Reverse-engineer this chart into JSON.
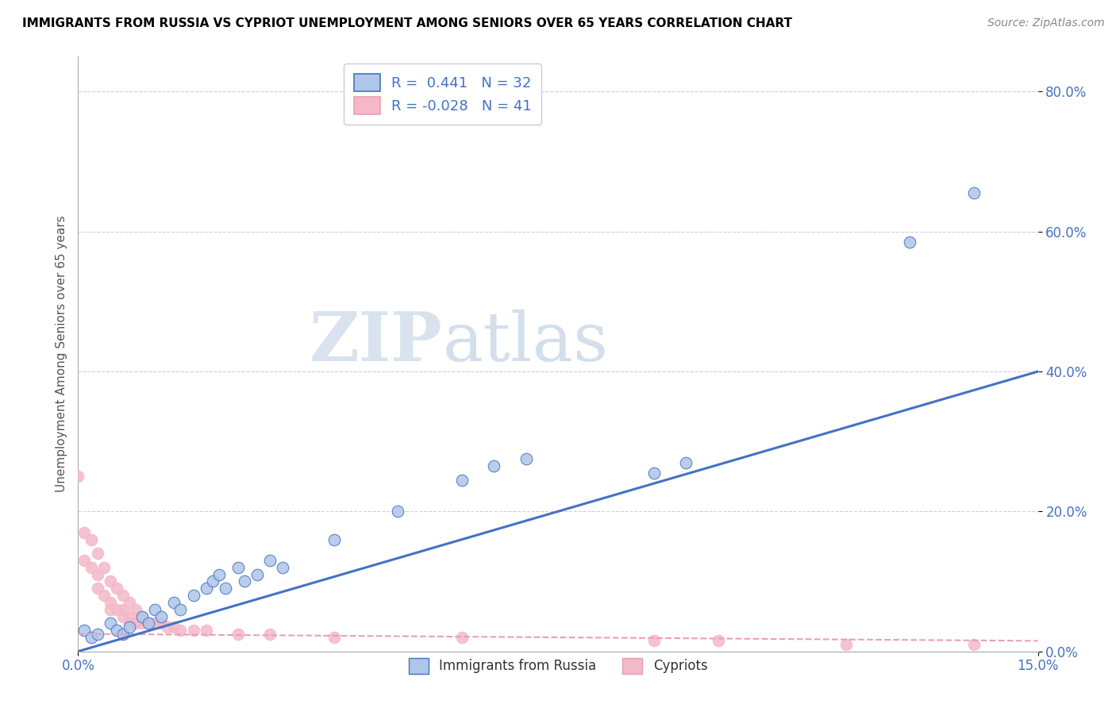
{
  "title": "IMMIGRANTS FROM RUSSIA VS CYPRIOT UNEMPLOYMENT AMONG SENIORS OVER 65 YEARS CORRELATION CHART",
  "source": "Source: ZipAtlas.com",
  "ylabel_label": "Unemployment Among Seniors over 65 years",
  "legend_label1": "Immigrants from Russia",
  "legend_label2": "Cypriots",
  "R1": 0.441,
  "N1": 32,
  "R2": -0.028,
  "N2": 41,
  "color_blue": "#aec6e8",
  "color_pink": "#f4b8c8",
  "line_blue": "#4472c4",
  "line_pink_dashed": "#f4b8c8",
  "watermark_zip": "ZIP",
  "watermark_atlas": "atlas",
  "blue_scatter_x": [
    0.001,
    0.002,
    0.003,
    0.005,
    0.006,
    0.007,
    0.008,
    0.01,
    0.011,
    0.012,
    0.013,
    0.015,
    0.016,
    0.018,
    0.02,
    0.021,
    0.022,
    0.023,
    0.025,
    0.026,
    0.028,
    0.03,
    0.032,
    0.04,
    0.05,
    0.06,
    0.065,
    0.07,
    0.09,
    0.095,
    0.13,
    0.14
  ],
  "blue_scatter_y": [
    0.03,
    0.02,
    0.025,
    0.04,
    0.03,
    0.025,
    0.035,
    0.05,
    0.04,
    0.06,
    0.05,
    0.07,
    0.06,
    0.08,
    0.09,
    0.1,
    0.11,
    0.09,
    0.12,
    0.1,
    0.11,
    0.13,
    0.12,
    0.16,
    0.2,
    0.245,
    0.265,
    0.275,
    0.255,
    0.27,
    0.585,
    0.655
  ],
  "pink_scatter_x": [
    0.0,
    0.001,
    0.001,
    0.002,
    0.002,
    0.003,
    0.003,
    0.003,
    0.004,
    0.004,
    0.005,
    0.005,
    0.005,
    0.006,
    0.006,
    0.007,
    0.007,
    0.007,
    0.008,
    0.008,
    0.008,
    0.009,
    0.009,
    0.01,
    0.01,
    0.011,
    0.012,
    0.013,
    0.014,
    0.015,
    0.016,
    0.018,
    0.02,
    0.025,
    0.03,
    0.04,
    0.06,
    0.09,
    0.1,
    0.12,
    0.14
  ],
  "pink_scatter_y": [
    0.25,
    0.17,
    0.13,
    0.16,
    0.12,
    0.14,
    0.11,
    0.09,
    0.12,
    0.08,
    0.1,
    0.07,
    0.06,
    0.09,
    0.06,
    0.08,
    0.06,
    0.05,
    0.07,
    0.05,
    0.04,
    0.06,
    0.04,
    0.05,
    0.04,
    0.04,
    0.04,
    0.04,
    0.035,
    0.035,
    0.03,
    0.03,
    0.03,
    0.025,
    0.025,
    0.02,
    0.02,
    0.015,
    0.015,
    0.01,
    0.01
  ],
  "blue_line_x0": 0.0,
  "blue_line_y0": 0.0,
  "blue_line_x1": 0.15,
  "blue_line_y1": 0.4,
  "pink_line_x0": 0.0,
  "pink_line_y0": 0.025,
  "pink_line_x1": 0.15,
  "pink_line_y1": 0.015,
  "xmax": 0.15,
  "ymax": 0.85,
  "ytick_vals": [
    0.0,
    0.2,
    0.4,
    0.6,
    0.8
  ],
  "ytick_labels": [
    "0.0%",
    "20.0%",
    "40.0%",
    "60.0%",
    "80.0%"
  ],
  "xtick_vals": [
    0.0,
    0.15
  ],
  "xtick_labels": [
    "0.0%",
    "15.0%"
  ]
}
